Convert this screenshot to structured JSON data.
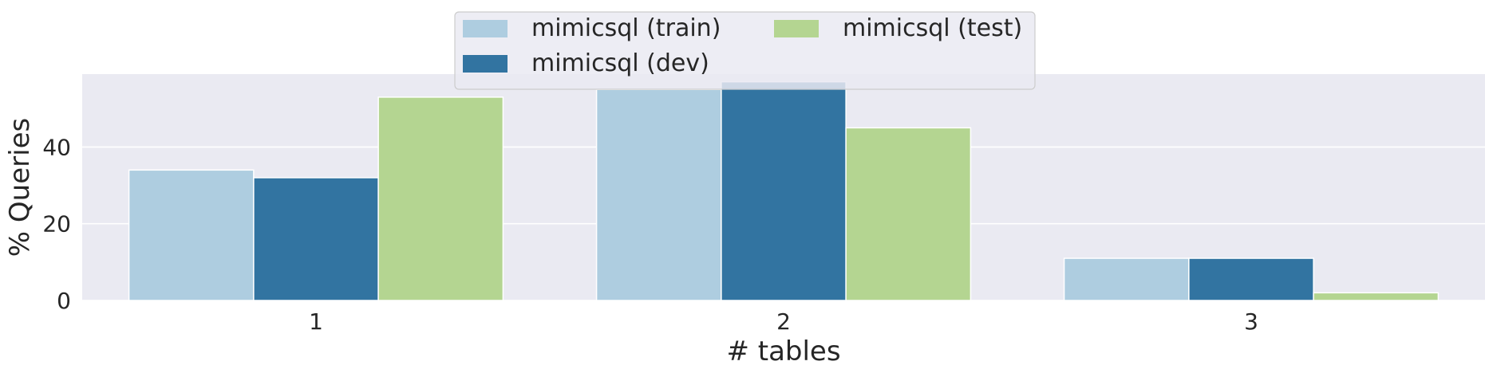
{
  "chart_data": {
    "type": "bar",
    "title": "",
    "xlabel": "# tables",
    "ylabel": "% Queries",
    "categories": [
      "1",
      "2",
      "3"
    ],
    "ylim": [
      0,
      59
    ],
    "yticks": [
      0,
      20,
      40
    ],
    "grid": true,
    "legend_position": "top-center",
    "series": [
      {
        "name": "mimicsql (train)",
        "color": "#aecde0",
        "values": [
          34,
          55,
          11
        ]
      },
      {
        "name": "mimicsql (dev)",
        "color": "#3274a1",
        "values": [
          32,
          57,
          11
        ]
      },
      {
        "name": "mimicsql (test)",
        "color": "#b4d591",
        "values": [
          53,
          45,
          2
        ]
      }
    ]
  },
  "colors": {
    "plot_background": "#eaeaf2",
    "grid": "#ffffff",
    "text": "#262626"
  }
}
